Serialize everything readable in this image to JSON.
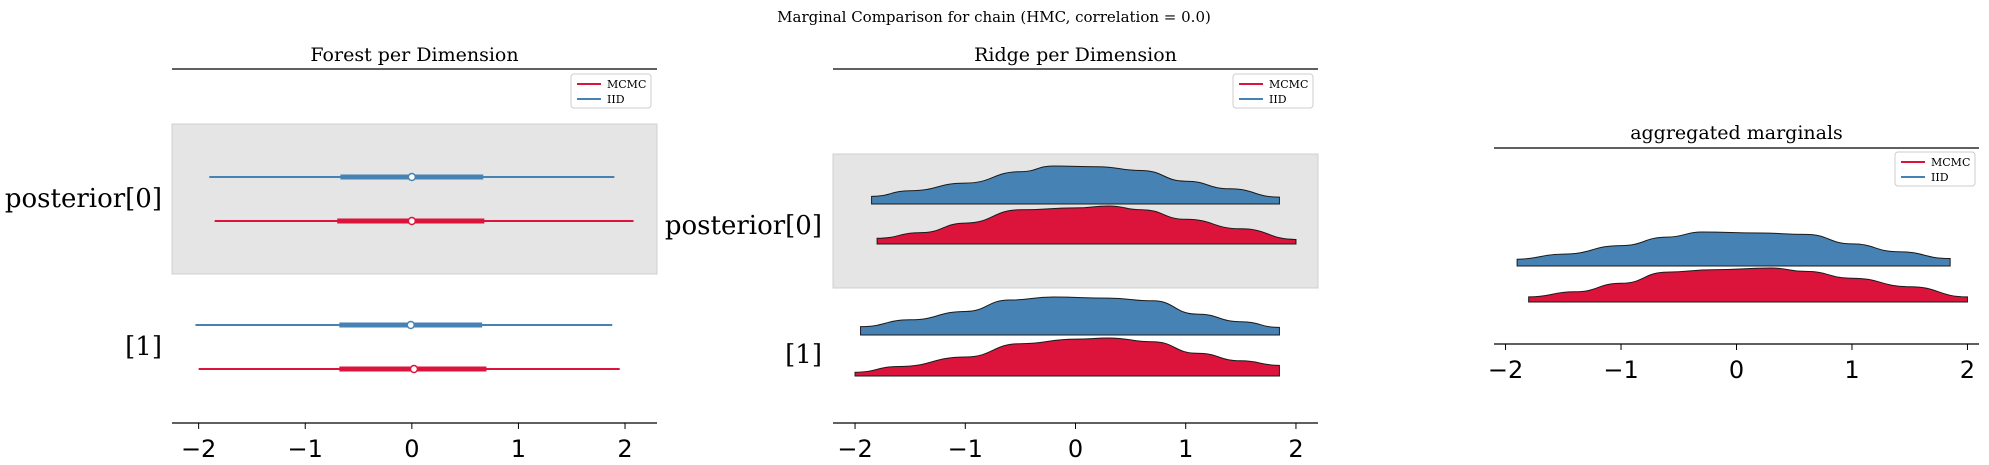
{
  "figure_title": "Marginal Comparison for chain (HMC, correlation = 0.0)",
  "colors": {
    "mcmc": "#dc143c",
    "iid": "#4682b4",
    "band": "#e5e5e5",
    "band_edge": "#d0d0d0",
    "axis": "#000000"
  },
  "chart_data": [
    {
      "type": "forest",
      "title": "Forest per Dimension",
      "xlim": [
        -2.25,
        2.3
      ],
      "xticks": [
        "−2",
        "−1",
        "0",
        "1",
        "2"
      ],
      "xtick_values": [
        -2,
        -1,
        0,
        1,
        2
      ],
      "row_labels": [
        "posterior[0]",
        "[1]"
      ],
      "legend": [
        "MCMC",
        "IID"
      ],
      "legend_position": "top-right",
      "shaded_row": 0,
      "rows": [
        {
          "label": "posterior[0]",
          "series": [
            {
              "name": "IID",
              "hdi_low": -1.9,
              "hdi_high": 1.9,
              "iqr_low": -0.67,
              "iqr_high": 0.67,
              "median": 0.0
            },
            {
              "name": "MCMC",
              "hdi_low": -1.85,
              "hdi_high": 2.08,
              "iqr_low": -0.7,
              "iqr_high": 0.68,
              "median": 0.0
            }
          ]
        },
        {
          "label": "[1]",
          "series": [
            {
              "name": "IID",
              "hdi_low": -2.03,
              "hdi_high": 1.88,
              "iqr_low": -0.68,
              "iqr_high": 0.66,
              "median": -0.01
            },
            {
              "name": "MCMC",
              "hdi_low": -2.0,
              "hdi_high": 1.95,
              "iqr_low": -0.68,
              "iqr_high": 0.7,
              "median": 0.02
            }
          ]
        }
      ]
    },
    {
      "type": "ridge",
      "title": "Ridge per Dimension",
      "xlim": [
        -2.2,
        2.2
      ],
      "xticks": [
        "−2",
        "−1",
        "0",
        "1",
        "2"
      ],
      "xtick_values": [
        -2,
        -1,
        0,
        1,
        2
      ],
      "row_labels": [
        "posterior[0]",
        "[1]"
      ],
      "legend": [
        "MCMC",
        "IID"
      ],
      "legend_position": "top-right",
      "shaded_row": 0,
      "rows": [
        {
          "label": "posterior[0]",
          "series": [
            {
              "name": "IID",
              "x": [
                -1.85,
                -1.5,
                -1.0,
                -0.5,
                -0.2,
                0.2,
                0.6,
                1.0,
                1.4,
                1.85
              ],
              "density": [
                0.2,
                0.35,
                0.55,
                0.85,
                1.0,
                0.98,
                0.88,
                0.6,
                0.4,
                0.18
              ]
            },
            {
              "name": "MCMC",
              "x": [
                -1.8,
                -1.4,
                -1.0,
                -0.5,
                0.0,
                0.3,
                0.6,
                1.0,
                1.5,
                2.0
              ],
              "density": [
                0.15,
                0.3,
                0.55,
                0.9,
                0.95,
                1.0,
                0.9,
                0.65,
                0.4,
                0.12
              ]
            }
          ]
        },
        {
          "label": "[1]",
          "series": [
            {
              "name": "IID",
              "x": [
                -1.95,
                -1.5,
                -1.0,
                -0.6,
                -0.2,
                0.3,
                0.7,
                1.1,
                1.5,
                1.85
              ],
              "density": [
                0.22,
                0.4,
                0.62,
                0.92,
                1.0,
                0.97,
                0.9,
                0.55,
                0.35,
                0.2
              ]
            },
            {
              "name": "MCMC",
              "x": [
                -2.0,
                -1.6,
                -1.0,
                -0.5,
                0.0,
                0.3,
                0.7,
                1.1,
                1.5,
                1.85
              ],
              "density": [
                0.1,
                0.25,
                0.5,
                0.85,
                0.97,
                1.0,
                0.9,
                0.6,
                0.4,
                0.28
              ]
            }
          ]
        }
      ]
    },
    {
      "type": "ridge",
      "title": "aggregated marginals",
      "xlim": [
        -2.1,
        2.1
      ],
      "xticks": [
        "−2",
        "−1",
        "0",
        "1",
        "2"
      ],
      "xtick_values": [
        -2,
        -1,
        0,
        1,
        2
      ],
      "row_labels": [],
      "legend": [
        "MCMC",
        "IID"
      ],
      "legend_position": "top-right",
      "rows": [
        {
          "label": "",
          "series": [
            {
              "name": "IID",
              "x": [
                -1.9,
                -1.5,
                -1.0,
                -0.6,
                -0.3,
                0.2,
                0.6,
                1.0,
                1.4,
                1.85
              ],
              "density": [
                0.2,
                0.35,
                0.6,
                0.85,
                1.0,
                0.97,
                0.93,
                0.65,
                0.42,
                0.22
              ]
            },
            {
              "name": "MCMC",
              "x": [
                -1.8,
                -1.4,
                -1.0,
                -0.6,
                -0.2,
                0.3,
                0.6,
                1.0,
                1.5,
                2.0
              ],
              "density": [
                0.15,
                0.3,
                0.55,
                0.88,
                0.95,
                1.0,
                0.9,
                0.7,
                0.45,
                0.15
              ]
            }
          ]
        }
      ]
    }
  ]
}
